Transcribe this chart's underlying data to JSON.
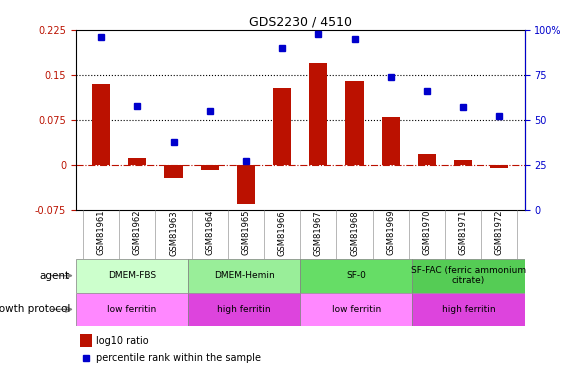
{
  "title": "GDS2230 / 4510",
  "samples": [
    "GSM81961",
    "GSM81962",
    "GSM81963",
    "GSM81964",
    "GSM81965",
    "GSM81966",
    "GSM81967",
    "GSM81968",
    "GSM81969",
    "GSM81970",
    "GSM81971",
    "GSM81972"
  ],
  "log10_ratio": [
    0.135,
    0.012,
    -0.022,
    -0.008,
    -0.065,
    0.128,
    0.17,
    0.14,
    0.08,
    0.018,
    0.008,
    -0.005
  ],
  "percentile_rank": [
    96,
    58,
    38,
    55,
    27,
    90,
    98,
    95,
    74,
    66,
    57,
    52
  ],
  "bar_color": "#bb1100",
  "dot_color": "#0000cc",
  "ymin": -0.075,
  "ymax": 0.225,
  "yticks_left": [
    -0.075,
    0,
    0.075,
    0.15,
    0.225
  ],
  "ytick_left_labels": [
    "-0.075",
    "0",
    "0.075",
    "0.15",
    "0.225"
  ],
  "yticks_right": [
    0,
    25,
    50,
    75,
    100
  ],
  "ytick_right_labels": [
    "0",
    "25",
    "50",
    "75",
    "100%"
  ],
  "hline_values": [
    0.075,
    0.15
  ],
  "zero_line": 0.0,
  "agent_groups": [
    {
      "label": "DMEM-FBS",
      "start": 0,
      "end": 3,
      "color": "#ccffcc"
    },
    {
      "label": "DMEM-Hemin",
      "start": 3,
      "end": 6,
      "color": "#99ee99"
    },
    {
      "label": "SF-0",
      "start": 6,
      "end": 9,
      "color": "#66dd66"
    },
    {
      "label": "SF-FAC (ferric ammonium\ncitrate)",
      "start": 9,
      "end": 12,
      "color": "#55cc55"
    }
  ],
  "protocol_groups": [
    {
      "label": "low ferritin",
      "start": 0,
      "end": 3,
      "color": "#ff88ff"
    },
    {
      "label": "high ferritin",
      "start": 3,
      "end": 6,
      "color": "#dd44dd"
    },
    {
      "label": "low ferritin",
      "start": 6,
      "end": 9,
      "color": "#ff88ff"
    },
    {
      "label": "high ferritin",
      "start": 9,
      "end": 12,
      "color": "#dd44dd"
    }
  ],
  "legend_bar_label": "log10 ratio",
  "legend_dot_label": "percentile rank within the sample",
  "agent_label": "agent",
  "protocol_label": "growth protocol",
  "bar_width": 0.5
}
